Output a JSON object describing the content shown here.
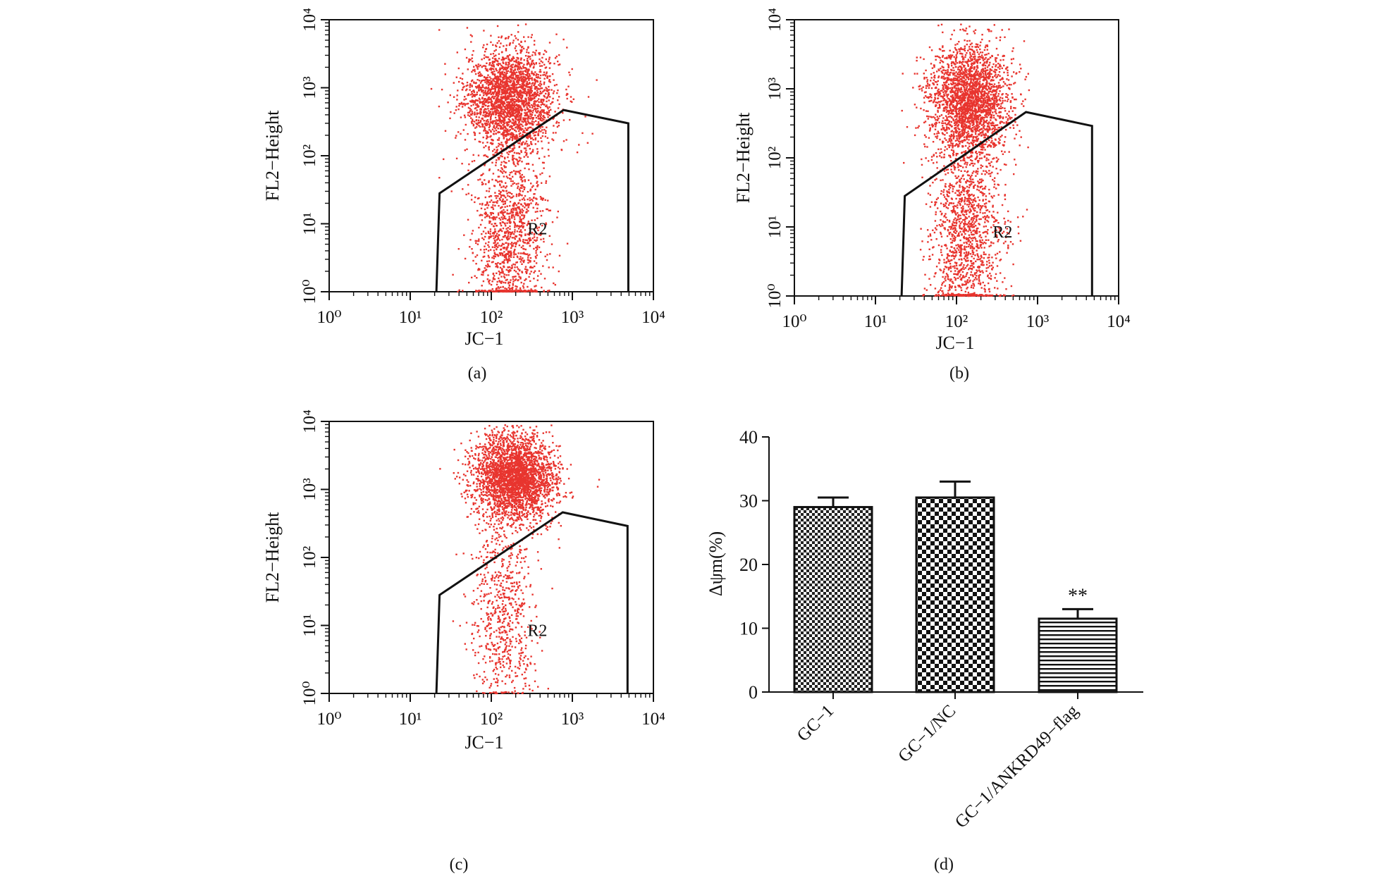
{
  "panels": [
    {
      "label": "(a)",
      "xlabel": "JC−1",
      "ylabel": "FL2−Height",
      "gate_label": "R2"
    },
    {
      "label": "(b)",
      "xlabel": "JC−1",
      "ylabel": "FL2−Height",
      "gate_label": "R2"
    },
    {
      "label": "(c)",
      "xlabel": "JC−1",
      "ylabel": "FL2−Height",
      "gate_label": "R2"
    },
    {
      "label": "(d)"
    }
  ],
  "chart_data": [
    {
      "type": "scatter",
      "panel": "(a)",
      "xlabel": "JC−1",
      "ylabel": "FL2−Height",
      "xscale": "log",
      "yscale": "log",
      "xlim": [
        1,
        10000
      ],
      "ylim": [
        1,
        10000
      ],
      "x_ticks": [
        "10⁰",
        "10¹",
        "10²",
        "10³",
        "10⁴"
      ],
      "y_ticks": [
        "10⁰",
        "10¹",
        "10²",
        "10³",
        "10⁴"
      ],
      "point_color": "#e8352f",
      "gate": {
        "name": "R2",
        "vertices": [
          [
            21,
            1
          ],
          [
            23,
            28
          ],
          [
            780,
            470
          ],
          [
            4900,
            300
          ],
          [
            4900,
            1
          ]
        ]
      },
      "populations": [
        {
          "center": [
            170,
            700
          ],
          "spread": [
            0.28,
            0.38
          ],
          "count": 2400
        },
        {
          "center": [
            160,
            7
          ],
          "spread": [
            0.22,
            0.75
          ],
          "count": 1300
        }
      ]
    },
    {
      "type": "scatter",
      "panel": "(b)",
      "xlabel": "JC−1",
      "ylabel": "FL2−Height",
      "xscale": "log",
      "yscale": "log",
      "xlim": [
        1,
        10000
      ],
      "ylim": [
        1,
        10000
      ],
      "x_ticks": [
        "10⁰",
        "10¹",
        "10²",
        "10³",
        "10⁴"
      ],
      "y_ticks": [
        "10⁰",
        "10¹",
        "10²",
        "10³",
        "10⁴"
      ],
      "point_color": "#e8352f",
      "gate": {
        "name": "R2",
        "vertices": [
          [
            21,
            1
          ],
          [
            23,
            28
          ],
          [
            720,
            460
          ],
          [
            4700,
            290
          ],
          [
            4700,
            1
          ]
        ]
      },
      "populations": [
        {
          "center": [
            140,
            700
          ],
          "spread": [
            0.25,
            0.4
          ],
          "count": 2400
        },
        {
          "center": [
            130,
            8
          ],
          "spread": [
            0.22,
            0.75
          ],
          "count": 1400
        }
      ]
    },
    {
      "type": "scatter",
      "panel": "(c)",
      "xlabel": "JC−1",
      "ylabel": "FL2−Height",
      "xscale": "log",
      "yscale": "log",
      "xlim": [
        1,
        10000
      ],
      "ylim": [
        1,
        10000
      ],
      "x_ticks": [
        "10⁰",
        "10¹",
        "10²",
        "10³",
        "10⁴"
      ],
      "y_ticks": [
        "10⁰",
        "10¹",
        "10²",
        "10³",
        "10⁴"
      ],
      "point_color": "#e8352f",
      "gate": {
        "name": "R2",
        "vertices": [
          [
            21,
            1
          ],
          [
            23,
            28
          ],
          [
            760,
            460
          ],
          [
            4800,
            290
          ],
          [
            4800,
            1
          ]
        ]
      },
      "populations": [
        {
          "center": [
            190,
            1500
          ],
          "spread": [
            0.25,
            0.33
          ],
          "count": 2900
        },
        {
          "center": [
            140,
            15
          ],
          "spread": [
            0.2,
            0.7
          ],
          "count": 650
        }
      ]
    },
    {
      "type": "bar",
      "panel": "(d)",
      "categories": [
        "GC−1",
        "GC−1/NC",
        "GC−1/ANKRD49−flag"
      ],
      "values": [
        29.0,
        30.5,
        11.5
      ],
      "errors": [
        1.5,
        2.5,
        1.5
      ],
      "ylabel": "Δψm(%)",
      "xlabel": "",
      "ylim": [
        0,
        40
      ],
      "y_ticks": [
        "0",
        "10",
        "20",
        "30",
        "40"
      ],
      "patterns": [
        "checker-fine",
        "checker-coarse",
        "horizontal-lines"
      ],
      "annotations": [
        {
          "category": "GC−1/ANKRD49−flag",
          "text": "**"
        }
      ]
    }
  ]
}
